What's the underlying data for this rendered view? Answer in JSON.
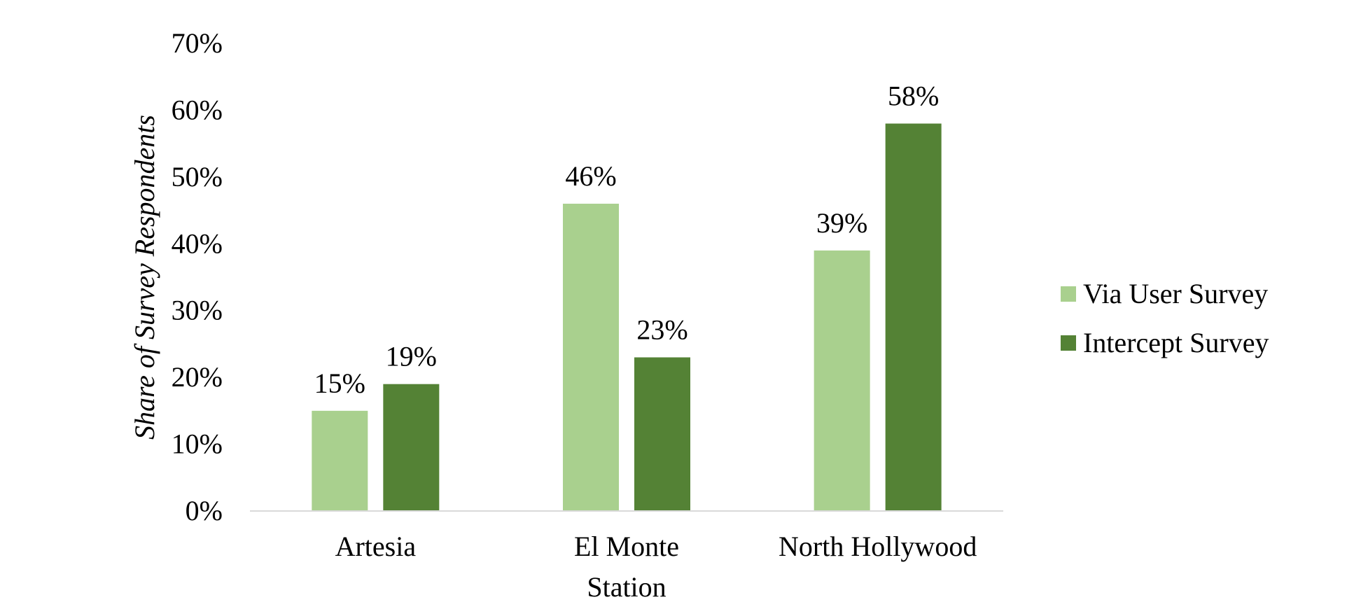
{
  "chart_data": {
    "type": "bar",
    "title": "",
    "xlabel": "Station",
    "ylabel": "Share of Survey Respondents",
    "categories": [
      "Artesia",
      "El Monte",
      "North Hollywood"
    ],
    "series": [
      {
        "name": "Via User Survey",
        "color": "#a9d08e",
        "values": [
          15,
          46,
          39
        ],
        "labels": [
          "15%",
          "46%",
          "39%"
        ]
      },
      {
        "name": "Intercept Survey",
        "color": "#548235",
        "values": [
          19,
          23,
          58
        ],
        "labels": [
          "19%",
          "23%",
          "58%"
        ]
      }
    ],
    "ylim": [
      0,
      70
    ],
    "y_ticks": [
      0,
      10,
      20,
      30,
      40,
      50,
      60,
      70
    ],
    "y_tick_labels": [
      "0%",
      "10%",
      "20%",
      "30%",
      "40%",
      "50%",
      "60%",
      "70%"
    ],
    "grid": false,
    "legend_position": "right",
    "axis_color": "#d9d9d9"
  }
}
